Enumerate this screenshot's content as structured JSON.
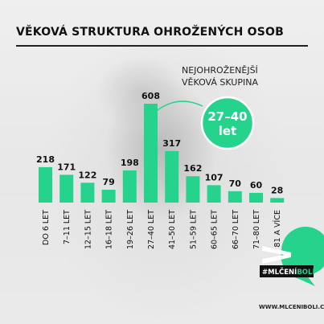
{
  "title": "VĚKOVÁ STRUKTURA OHROŽENÝCH OSOB",
  "annotation": {
    "line1": "NEJOHROŽENĚJŠÍ",
    "line2": "VĚKOVÁ SKUPINA",
    "badge_line1": "27–40",
    "badge_line2": "let"
  },
  "logo": {
    "hashtag": "#MLČENÍ",
    "hashtag_bold": "BOLÍ",
    "url": "WWW.MLCENIBOLI.CZ"
  },
  "colors": {
    "accent": "#25d38c",
    "dark": "#111111"
  },
  "chart_data": {
    "type": "bar",
    "categories": [
      "DO 6 LET",
      "7–11 LET",
      "12–15 LET",
      "16–18 LET",
      "19–26 LET",
      "27–40 LET",
      "41–50 LET",
      "51–59 LET",
      "60–65 LET",
      "66–70 LET",
      "71–80 LET",
      "81 A VÍCE"
    ],
    "values": [
      218,
      171,
      122,
      79,
      198,
      608,
      317,
      162,
      107,
      70,
      60,
      28
    ],
    "highlight": "27–40 LET",
    "title": "VĚKOVÁ STRUKTURA OHROŽENÝCH OSOB",
    "ylim": [
      0,
      608
    ]
  }
}
